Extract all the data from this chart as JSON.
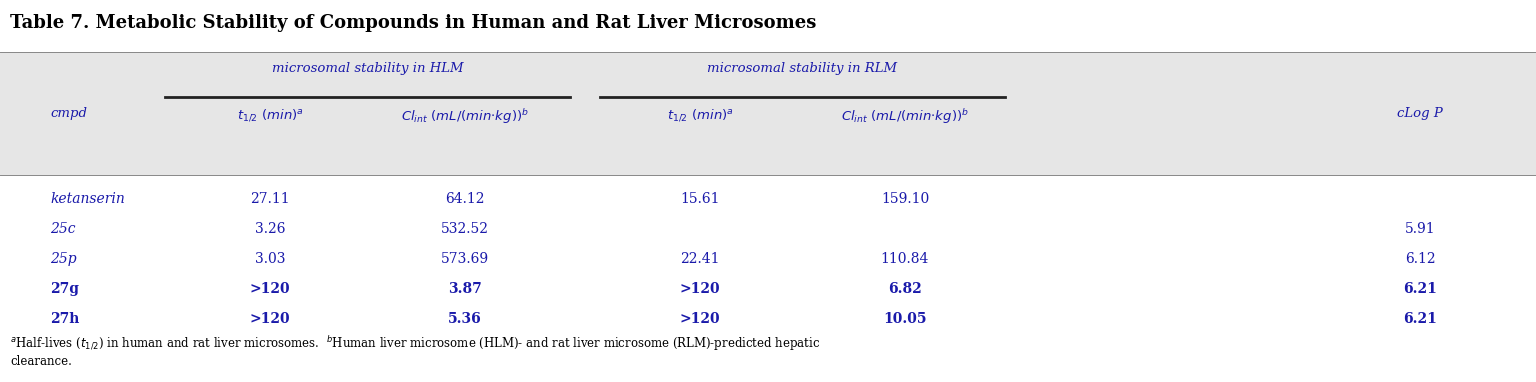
{
  "title": "Table 7. Metabolic Stability of Compounds in Human and Rat Liver Microsomes",
  "header_group_hlm": "microsomal stability in HLM",
  "header_group_rlm": "microsomal stability in RLM",
  "rows": [
    [
      "ketanserin",
      "27.11",
      "64.12",
      "15.61",
      "159.10",
      ""
    ],
    [
      "25c",
      "3.26",
      "532.52",
      "",
      "",
      "5.91"
    ],
    [
      "25p",
      "3.03",
      "573.69",
      "22.41",
      "110.84",
      "6.12"
    ],
    [
      "27g",
      ">120",
      "3.87",
      ">120",
      "6.82",
      "6.21"
    ],
    [
      "27h",
      ">120",
      "5.36",
      ">120",
      "10.05",
      "6.21"
    ]
  ],
  "bold_cmpds": [
    "27g",
    "27h"
  ],
  "bg_color_header": "#e6e6e6",
  "text_color": "#1a1aaa",
  "title_color": "#000000",
  "footnote_color": "#000000"
}
